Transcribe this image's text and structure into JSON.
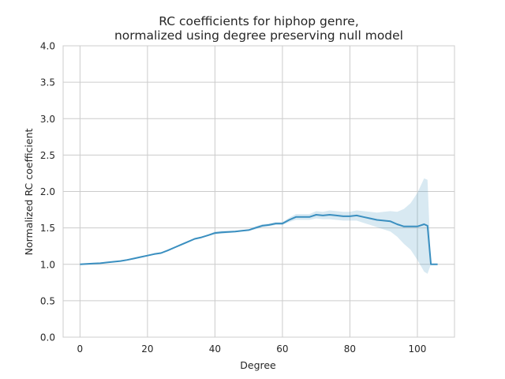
{
  "chart_data": {
    "type": "line",
    "title": [
      "RC coefficients for hiphop genre,",
      "normalized using degree preserving null model"
    ],
    "xlabel": "Degree",
    "ylabel": "Normalized RC coefficient",
    "xlim": [
      -5,
      111
    ],
    "ylim": [
      0,
      4
    ],
    "xticks": [
      0,
      20,
      40,
      60,
      80,
      100
    ],
    "yticks": [
      0.0,
      0.5,
      1.0,
      1.5,
      2.0,
      2.5,
      3.0,
      3.5,
      4.0
    ],
    "xtick_labels": [
      "0",
      "20",
      "40",
      "60",
      "80",
      "100"
    ],
    "ytick_labels": [
      "0.0",
      "0.5",
      "1.0",
      "1.5",
      "2.0",
      "2.5",
      "3.0",
      "3.5",
      "4.0"
    ],
    "grid": true,
    "colors": {
      "line": "#3a8fc0",
      "band": "#3a8fc0"
    },
    "series": [
      {
        "x": [
          0,
          2,
          4,
          6,
          8,
          10,
          12,
          14,
          16,
          18,
          20,
          22,
          24,
          26,
          28,
          30,
          32,
          34,
          36,
          38,
          40,
          42,
          44,
          46,
          48,
          50,
          52,
          54,
          56,
          58,
          60,
          62,
          64,
          66,
          68,
          70,
          72,
          74,
          76,
          78,
          80,
          82,
          84,
          86,
          88,
          90,
          92,
          94,
          96,
          98,
          100,
          102,
          103,
          104,
          105,
          106
        ],
        "y": [
          1.0,
          1.005,
          1.01,
          1.015,
          1.025,
          1.035,
          1.045,
          1.06,
          1.08,
          1.1,
          1.12,
          1.14,
          1.155,
          1.19,
          1.23,
          1.27,
          1.31,
          1.35,
          1.37,
          1.4,
          1.43,
          1.44,
          1.445,
          1.45,
          1.46,
          1.47,
          1.5,
          1.53,
          1.54,
          1.56,
          1.56,
          1.61,
          1.65,
          1.65,
          1.65,
          1.68,
          1.67,
          1.68,
          1.67,
          1.66,
          1.66,
          1.67,
          1.65,
          1.63,
          1.61,
          1.6,
          1.59,
          1.55,
          1.52,
          1.52,
          1.52,
          1.55,
          1.53,
          1.0,
          1.0,
          1.0
        ],
        "lower": [
          1.0,
          1.003,
          1.008,
          1.012,
          1.02,
          1.03,
          1.04,
          1.055,
          1.075,
          1.09,
          1.11,
          1.13,
          1.145,
          1.18,
          1.22,
          1.26,
          1.3,
          1.34,
          1.36,
          1.39,
          1.41,
          1.42,
          1.43,
          1.44,
          1.45,
          1.46,
          1.48,
          1.51,
          1.52,
          1.54,
          1.54,
          1.58,
          1.61,
          1.61,
          1.61,
          1.63,
          1.62,
          1.62,
          1.61,
          1.6,
          1.6,
          1.6,
          1.57,
          1.54,
          1.51,
          1.48,
          1.45,
          1.38,
          1.28,
          1.2,
          1.06,
          0.9,
          0.87,
          1.0,
          1.0,
          1.0
        ],
        "upper": [
          1.0,
          1.007,
          1.012,
          1.018,
          1.03,
          1.04,
          1.05,
          1.065,
          1.085,
          1.11,
          1.13,
          1.15,
          1.165,
          1.2,
          1.24,
          1.28,
          1.32,
          1.36,
          1.38,
          1.41,
          1.45,
          1.46,
          1.46,
          1.46,
          1.47,
          1.48,
          1.52,
          1.55,
          1.56,
          1.58,
          1.58,
          1.64,
          1.69,
          1.69,
          1.69,
          1.73,
          1.72,
          1.74,
          1.73,
          1.72,
          1.72,
          1.74,
          1.73,
          1.72,
          1.71,
          1.72,
          1.73,
          1.72,
          1.76,
          1.84,
          1.98,
          2.18,
          2.16,
          1.0,
          1.0,
          1.0
        ]
      }
    ]
  }
}
